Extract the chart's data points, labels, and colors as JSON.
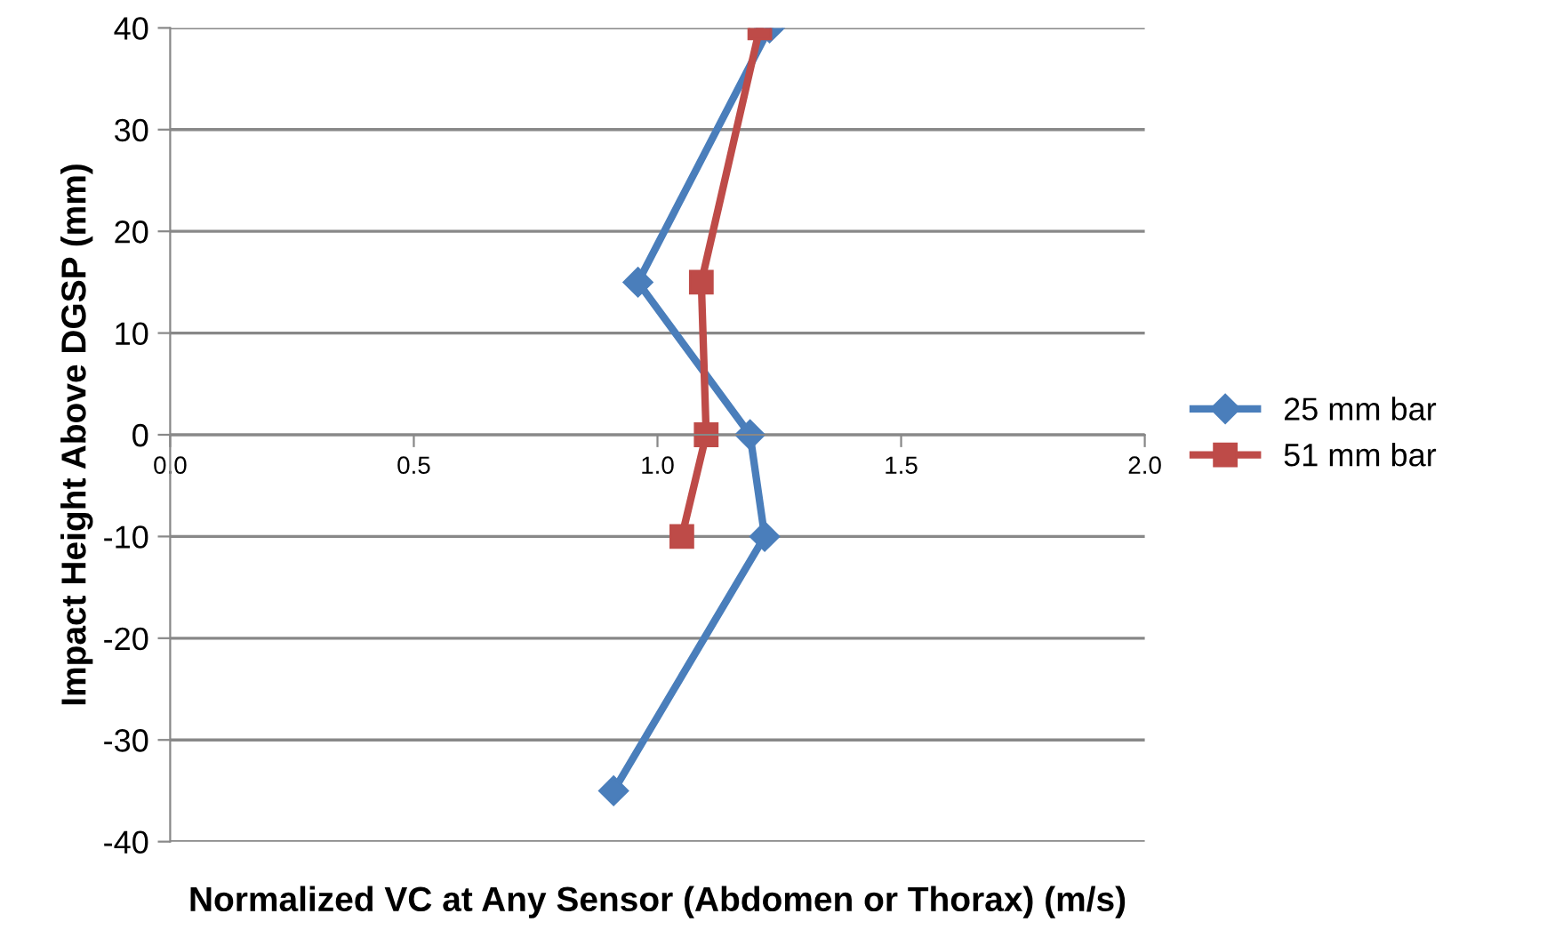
{
  "chart_data": {
    "type": "line",
    "xlabel": "Normalized VC at Any Sensor (Abdomen or Thorax) (m/s)",
    "ylabel": "Impact Height Above DGSP (mm)",
    "series": [
      {
        "name": "25 mm bar",
        "color": "#4a7ebb",
        "marker": "diamond",
        "x": [
          1.23,
          0.96,
          1.19,
          1.22,
          0.91
        ],
        "values": [
          40,
          15,
          0,
          -10,
          -35
        ]
      },
      {
        "name": "51 mm bar",
        "color": "#be4b48",
        "marker": "square",
        "x": [
          1.21,
          1.09,
          1.1,
          1.05
        ],
        "values": [
          40,
          15,
          0,
          -10
        ]
      }
    ],
    "xlim": [
      0,
      2
    ],
    "xticks": [
      {
        "value": 0,
        "label": "0.0"
      },
      0.5,
      {
        "value": 1,
        "label": "1.0"
      },
      1.5,
      {
        "value": 2,
        "label": "2.0"
      }
    ],
    "ylim": [
      -40,
      40
    ],
    "yticks": [
      -40,
      -30,
      -20,
      -10,
      0,
      10,
      20,
      30,
      40
    ],
    "grid": "y",
    "legend": "right",
    "line_style": "solid"
  }
}
